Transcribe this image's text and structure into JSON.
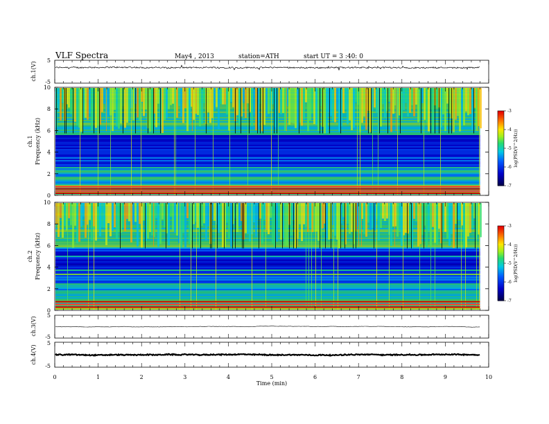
{
  "header": {
    "title": "VLF Spectra",
    "date": "May4 , 2013",
    "station": "station=ATH",
    "start": "start UT = 3 :40: 0"
  },
  "chart_data": [
    {
      "type": "line",
      "panel": "ch1-waveform",
      "ylabel": "ch.1(V)",
      "ylim": [
        -5,
        5
      ],
      "ytick_labels": [
        "5",
        "-5"
      ],
      "description_values": {
        "baseline_V": 1.8,
        "noise_amplitude_V": 0.3
      },
      "x_range_min": [
        0,
        9.8
      ]
    },
    {
      "type": "heatmap",
      "panel": "ch1-spectrogram",
      "ylabel": "ch.1 Frequency (kHz)",
      "ylim": [
        0,
        10
      ],
      "ytick_labels": [
        "0",
        "2",
        "4",
        "6",
        "8",
        "10"
      ],
      "colorbar": {
        "label": "log(PSD(V^2/Hz))",
        "range": [
          -7,
          -3
        ],
        "tick_labels": [
          "-3",
          "-4",
          "-5",
          "-6",
          "-7"
        ]
      },
      "strong_lines_kHz": [
        0.2,
        0.4,
        0.6,
        0.8
      ]
    },
    {
      "type": "heatmap",
      "panel": "ch2-spectrogram",
      "ylabel": "ch.2 Frequency (kHz)",
      "ylim": [
        0,
        10
      ],
      "ytick_labels": [
        "0",
        "2",
        "4",
        "6",
        "8",
        "10"
      ],
      "colorbar": {
        "label": "log(PSD(V^2/Hz))",
        "range": [
          -7,
          -3
        ],
        "tick_labels": [
          "-3",
          "-4",
          "-5",
          "-6",
          "-7"
        ]
      },
      "strong_lines_kHz": [
        0.3,
        0.55,
        0.8
      ]
    },
    {
      "type": "line",
      "panel": "ch3-waveform",
      "ylabel": "ch.3(V)",
      "ylim": [
        -5,
        5
      ],
      "ytick_labels": [
        "5",
        "-5"
      ],
      "description_values": {
        "baseline_V": 0.0,
        "noise_amplitude_V": 0.05
      }
    },
    {
      "type": "line",
      "panel": "ch4-waveform",
      "ylabel": "ch.4(V)",
      "ylim": [
        -5,
        5
      ],
      "ytick_labels": [
        "5",
        "-5"
      ],
      "description_values": {
        "baseline_V": 0.0,
        "noise_amplitude_V": 0.2
      }
    }
  ],
  "xaxis": {
    "label": "Time (min)",
    "range": [
      0,
      10
    ],
    "tick_labels": [
      "0",
      "1",
      "2",
      "3",
      "4",
      "5",
      "6",
      "7",
      "8",
      "9",
      "10"
    ]
  },
  "colors": {
    "spectro_low": "#000078",
    "spectro_high": "#ff0000"
  }
}
